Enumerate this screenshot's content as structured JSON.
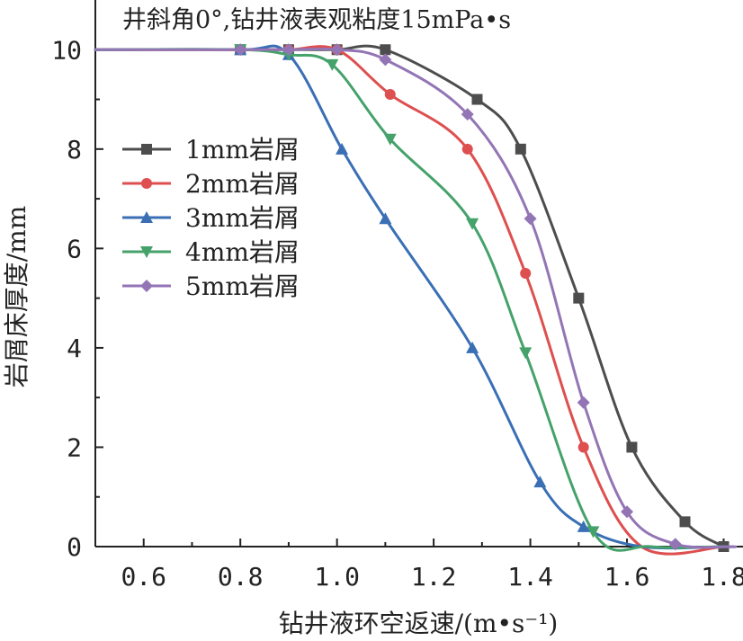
{
  "chart_data": {
    "type": "line",
    "title": "井斜角0°,钻井液表观粘度15mPa•s",
    "xlabel": "钻井液环空返速/(m•s⁻¹)",
    "ylabel": "岩屑床厚度/mm",
    "xlim": [
      0.5,
      1.84
    ],
    "ylim": [
      0,
      11
    ],
    "x_ticks": [
      0.6,
      0.8,
      1.0,
      1.2,
      1.4,
      1.6,
      1.8
    ],
    "x_tick_labels": [
      "0.6",
      "0.8",
      "1.0",
      "1.2",
      "1.4",
      "1.6",
      "1.8"
    ],
    "y_ticks": [
      0,
      2,
      4,
      6,
      8,
      10
    ],
    "y_tick_labels": [
      "0",
      "2",
      "4",
      "6",
      "8",
      "10"
    ],
    "grid": false,
    "legend_position": "center-left",
    "series": [
      {
        "name": "1mm岩屑",
        "color": "#4d4d4d",
        "marker": "square",
        "x": [
          0.8,
          0.9,
          1.0,
          1.1,
          1.29,
          1.38,
          1.5,
          1.61,
          1.72,
          1.8
        ],
        "y": [
          10,
          10,
          10,
          10,
          9.0,
          8.0,
          5.0,
          2.0,
          0.5,
          0.0
        ]
      },
      {
        "name": "2mm岩屑",
        "color": "#de4f4f",
        "marker": "circle",
        "x": [
          0.8,
          0.9,
          1.0,
          1.11,
          1.27,
          1.39,
          1.51
        ],
        "y": [
          10,
          10,
          10,
          9.1,
          8.0,
          5.5,
          2.0
        ]
      },
      {
        "name": "3mm岩屑",
        "color": "#3a6fb5",
        "marker": "triangle-up",
        "x": [
          0.8,
          0.9,
          1.01,
          1.1,
          1.28,
          1.42,
          1.51
        ],
        "y": [
          10,
          9.9,
          8.0,
          6.6,
          4.0,
          1.3,
          0.4
        ]
      },
      {
        "name": "4mm岩屑",
        "color": "#45a26b",
        "marker": "triangle-down",
        "x": [
          0.8,
          0.9,
          0.99,
          1.11,
          1.28,
          1.39,
          1.53
        ],
        "y": [
          10,
          9.9,
          9.7,
          8.2,
          6.5,
          3.9,
          0.3
        ]
      },
      {
        "name": "5mm岩屑",
        "color": "#9375b5",
        "marker": "diamond",
        "x": [
          0.8,
          0.9,
          1.0,
          1.1,
          1.27,
          1.4,
          1.51,
          1.6,
          1.7
        ],
        "y": [
          10,
          10,
          10,
          9.8,
          8.7,
          6.6,
          2.9,
          0.7,
          0.05
        ]
      }
    ]
  }
}
